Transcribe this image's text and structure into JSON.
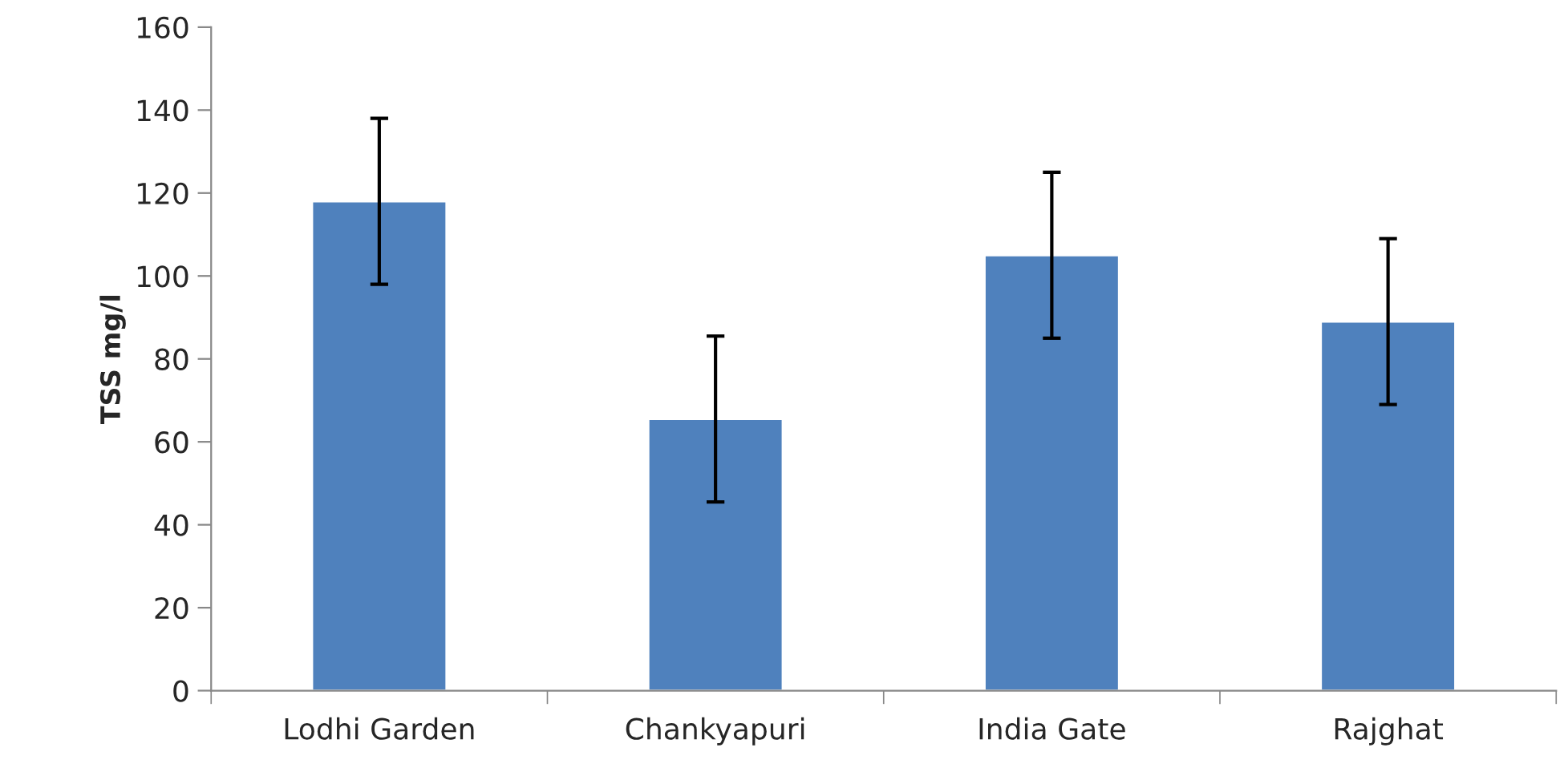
{
  "chart_data": {
    "type": "bar",
    "ylabel": "TSS mg/l",
    "categories": [
      "Lodhi Garden",
      "Chankyapuri",
      "India Gate",
      "Rajghat"
    ],
    "values": [
      118,
      65.5,
      105,
      89
    ],
    "errors": [
      20,
      20,
      20,
      20
    ],
    "color": "#4f81bd",
    "ylim": [
      0,
      160
    ],
    "yticks": [
      0,
      20,
      40,
      60,
      80,
      100,
      120,
      140,
      160
    ],
    "grid": false,
    "legend": false
  }
}
